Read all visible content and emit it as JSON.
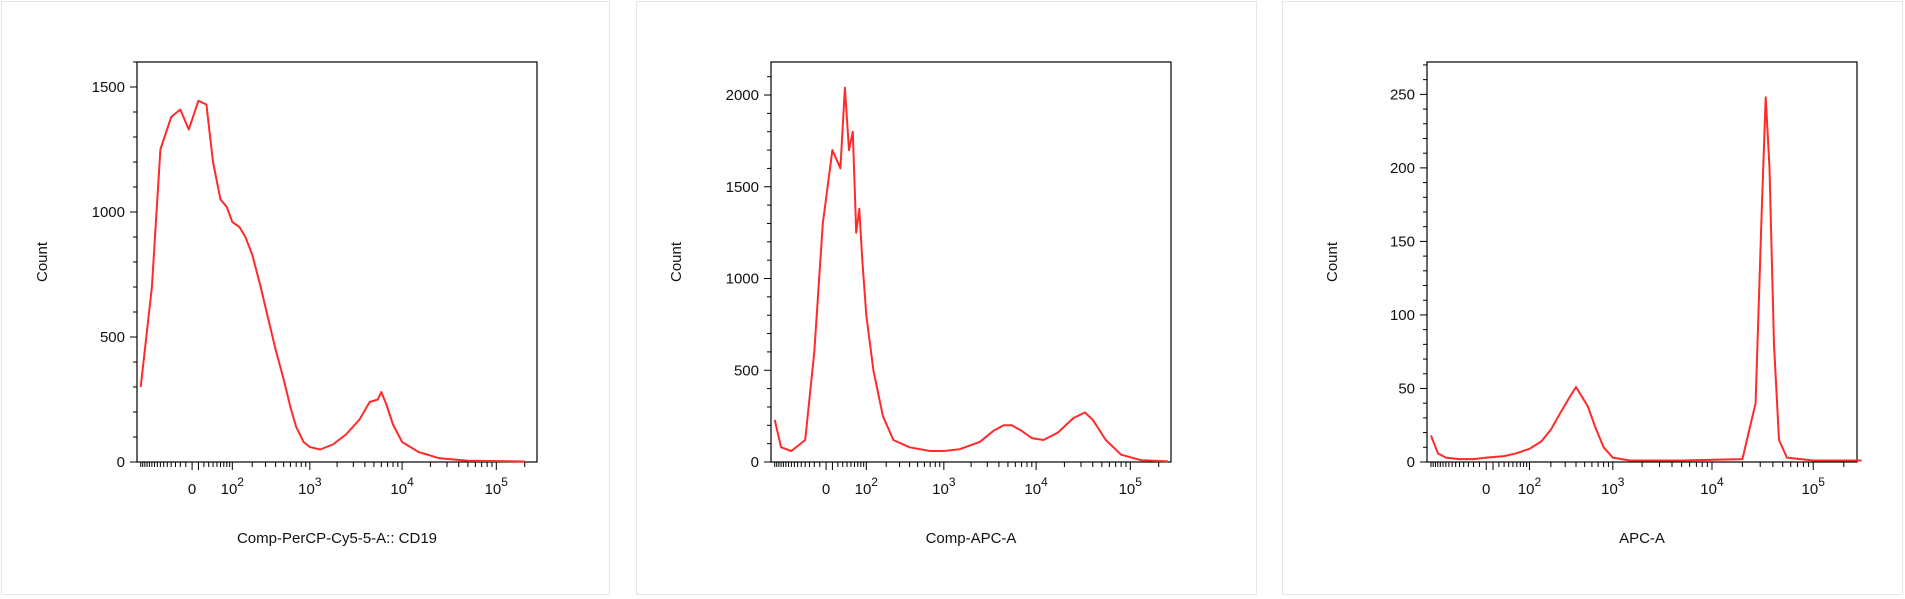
{
  "chart_data": [
    {
      "type": "line",
      "title": "",
      "xlabel": "Comp-PerCP-Cy5-5-A:: CD19",
      "ylabel": "Count",
      "x_scale": "biexponential (logicle)",
      "x_ticks": [
        {
          "value": 0,
          "base": "0",
          "exp": ""
        },
        {
          "value": 100,
          "base": "10",
          "exp": "2"
        },
        {
          "value": 1000,
          "base": "10",
          "exp": "3"
        },
        {
          "value": 10000,
          "base": "10",
          "exp": "4"
        },
        {
          "value": 100000,
          "base": "10",
          "exp": "5"
        }
      ],
      "yticks": [
        0,
        500,
        1000,
        1500
      ],
      "ylim": [
        0,
        1600
      ],
      "grid": false,
      "color": "#ff2a2a",
      "series": [
        {
          "points": [
            [
              -150,
              300
            ],
            [
              -100,
              700
            ],
            [
              -70,
              1250
            ],
            [
              -40,
              1380
            ],
            [
              -20,
              1410
            ],
            [
              -5,
              1330
            ],
            [
              10,
              1445
            ],
            [
              25,
              1430
            ],
            [
              40,
              1200
            ],
            [
              60,
              1050
            ],
            [
              80,
              1020
            ],
            [
              100,
              960
            ],
            [
              130,
              940
            ],
            [
              160,
              900
            ],
            [
              200,
              830
            ],
            [
              260,
              700
            ],
            [
              320,
              580
            ],
            [
              400,
              450
            ],
            [
              500,
              330
            ],
            [
              600,
              220
            ],
            [
              700,
              140
            ],
            [
              850,
              80
            ],
            [
              1000,
              60
            ],
            [
              1300,
              50
            ],
            [
              1800,
              70
            ],
            [
              2500,
              110
            ],
            [
              3500,
              170
            ],
            [
              4500,
              240
            ],
            [
              5500,
              250
            ],
            [
              6000,
              280
            ],
            [
              6800,
              230
            ],
            [
              8000,
              150
            ],
            [
              10000,
              80
            ],
            [
              15000,
              40
            ],
            [
              25000,
              15
            ],
            [
              50000,
              5
            ],
            [
              200000,
              2
            ]
          ]
        }
      ]
    },
    {
      "type": "line",
      "title": "",
      "xlabel": "Comp-APC-A",
      "ylabel": "Count",
      "x_scale": "biexponential (logicle)",
      "x_ticks": [
        {
          "value": 0,
          "base": "0",
          "exp": ""
        },
        {
          "value": 100,
          "base": "10",
          "exp": "2"
        },
        {
          "value": 1000,
          "base": "10",
          "exp": "3"
        },
        {
          "value": 10000,
          "base": "10",
          "exp": "4"
        },
        {
          "value": 100000,
          "base": "10",
          "exp": "5"
        }
      ],
      "yticks": [
        0,
        500,
        1000,
        1500,
        2000
      ],
      "ylim": [
        0,
        2180
      ],
      "grid": false,
      "color": "#ff2a2a",
      "series": [
        {
          "points": [
            [
              -150,
              230
            ],
            [
              -120,
              80
            ],
            [
              -80,
              60
            ],
            [
              -40,
              120
            ],
            [
              -20,
              600
            ],
            [
              -5,
              1300
            ],
            [
              10,
              1700
            ],
            [
              25,
              1600
            ],
            [
              35,
              2040
            ],
            [
              45,
              1700
            ],
            [
              55,
              1800
            ],
            [
              65,
              1250
            ],
            [
              75,
              1380
            ],
            [
              85,
              1100
            ],
            [
              100,
              800
            ],
            [
              130,
              500
            ],
            [
              180,
              250
            ],
            [
              250,
              120
            ],
            [
              400,
              80
            ],
            [
              700,
              60
            ],
            [
              1000,
              60
            ],
            [
              1500,
              70
            ],
            [
              2500,
              110
            ],
            [
              3500,
              170
            ],
            [
              4500,
              200
            ],
            [
              5500,
              200
            ],
            [
              7000,
              170
            ],
            [
              9000,
              130
            ],
            [
              12000,
              120
            ],
            [
              17000,
              160
            ],
            [
              25000,
              240
            ],
            [
              33000,
              270
            ],
            [
              40000,
              230
            ],
            [
              55000,
              120
            ],
            [
              80000,
              40
            ],
            [
              130000,
              10
            ],
            [
              250000,
              3
            ]
          ]
        }
      ]
    },
    {
      "type": "line",
      "title": "",
      "xlabel": "APC-A",
      "ylabel": "Count",
      "x_scale": "biexponential (logicle)",
      "x_ticks": [
        {
          "value": 0,
          "base": "0",
          "exp": ""
        },
        {
          "value": 100,
          "base": "10",
          "exp": "2"
        },
        {
          "value": 1000,
          "base": "10",
          "exp": "3"
        },
        {
          "value": 10000,
          "base": "10",
          "exp": "4"
        },
        {
          "value": 100000,
          "base": "10",
          "exp": "5"
        }
      ],
      "yticks": [
        0,
        50,
        100,
        150,
        200,
        250
      ],
      "ylim": [
        0,
        272
      ],
      "grid": false,
      "color": "#ff2a2a",
      "series": [
        {
          "points": [
            [
              -150,
              18
            ],
            [
              -120,
              6
            ],
            [
              -90,
              3
            ],
            [
              -50,
              2
            ],
            [
              -20,
              2
            ],
            [
              0,
              3
            ],
            [
              30,
              4
            ],
            [
              60,
              6
            ],
            [
              100,
              9
            ],
            [
              150,
              14
            ],
            [
              200,
              22
            ],
            [
              260,
              33
            ],
            [
              330,
              43
            ],
            [
              400,
              51
            ],
            [
              460,
              45
            ],
            [
              540,
              38
            ],
            [
              650,
              24
            ],
            [
              800,
              10
            ],
            [
              1000,
              3
            ],
            [
              1500,
              1
            ],
            [
              5000,
              1
            ],
            [
              20000,
              2
            ],
            [
              27000,
              40
            ],
            [
              31000,
              170
            ],
            [
              34000,
              248
            ],
            [
              37000,
              200
            ],
            [
              41000,
              80
            ],
            [
              46000,
              15
            ],
            [
              55000,
              3
            ],
            [
              100000,
              1
            ],
            [
              300000,
              1
            ]
          ]
        }
      ]
    }
  ]
}
